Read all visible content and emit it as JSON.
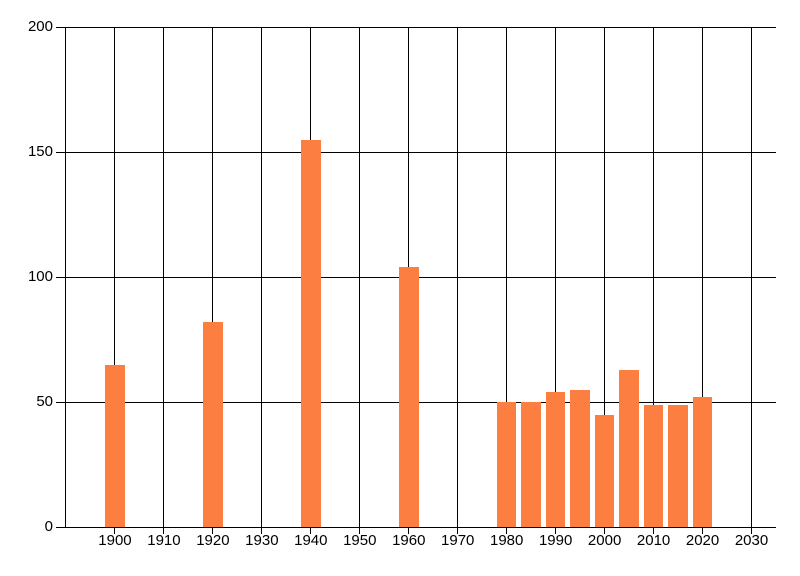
{
  "chart_data": {
    "type": "bar",
    "title": "",
    "xlabel": "",
    "ylabel": "",
    "x": [
      1900,
      1920,
      1940,
      1960,
      1980,
      1985,
      1990,
      1995,
      2000,
      2005,
      2010,
      2015,
      2020
    ],
    "values": [
      65,
      82,
      155,
      104,
      50,
      50,
      54,
      55,
      45,
      63,
      49,
      49,
      52
    ],
    "xlim": [
      1890,
      2035
    ],
    "ylim": [
      0,
      200
    ],
    "xticks": [
      1900,
      1910,
      1920,
      1930,
      1940,
      1950,
      1960,
      1970,
      1980,
      1990,
      2000,
      2010,
      2020,
      2030
    ],
    "yticks": [
      0,
      50,
      100,
      150,
      200
    ],
    "bar_width_x": 4,
    "grid": true,
    "legend_position": "none"
  },
  "colors": {
    "bar": "#fc7e40",
    "grid": "#000000",
    "axis": "#000000",
    "text": "#000000",
    "background": "#ffffff"
  }
}
